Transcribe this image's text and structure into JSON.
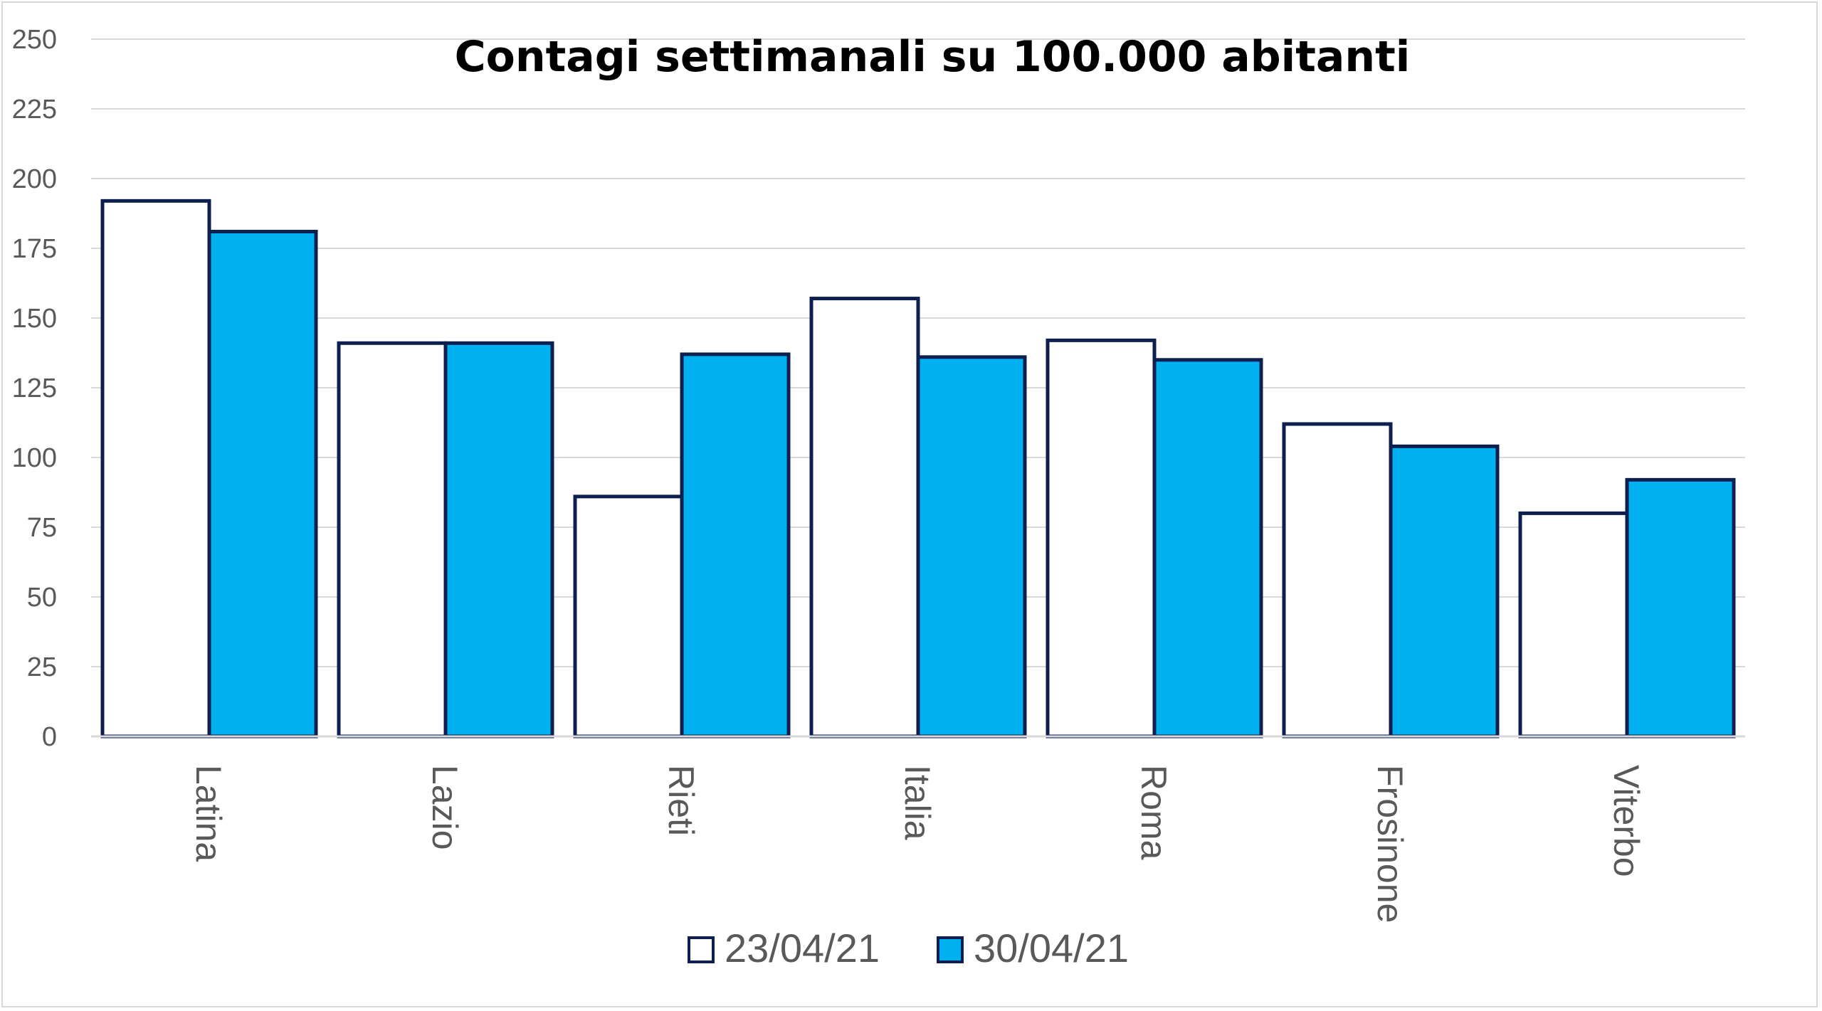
{
  "chart_data": {
    "type": "bar",
    "title": "Contagi settimanali su 100.000 abitanti",
    "xlabel": "",
    "ylabel": "",
    "ylim": [
      0,
      250
    ],
    "yticks": [
      0,
      25,
      50,
      75,
      100,
      125,
      150,
      175,
      200,
      225,
      250
    ],
    "grid": true,
    "legend_position": "bottom",
    "categories": [
      "Latina",
      "Lazio",
      "Rieti",
      "Italia",
      "Roma",
      "Frosinone",
      "Viterbo"
    ],
    "series": [
      {
        "name": "23/04/21",
        "color": "#ffffff",
        "values": [
          192,
          141,
          86,
          157,
          142,
          112,
          80
        ]
      },
      {
        "name": "30/04/21",
        "color": "#00b0f0",
        "values": [
          181,
          141,
          137,
          136,
          135,
          104,
          92
        ]
      }
    ],
    "bar_border_color": "#0d1f4f",
    "gridline_color": "#d9d9d9",
    "text_color": "#595959"
  }
}
